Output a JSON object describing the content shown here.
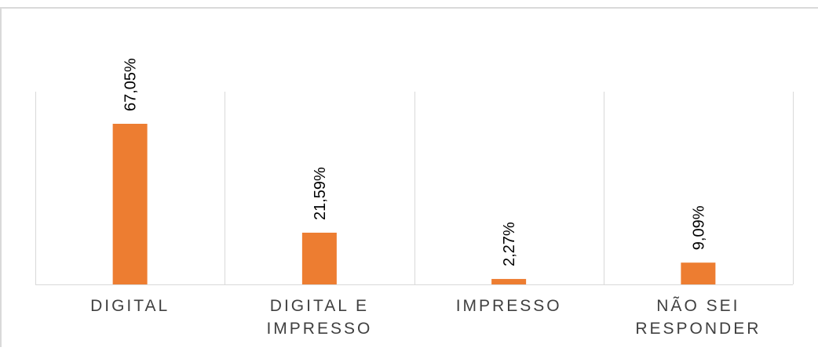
{
  "chart_data": {
    "type": "bar",
    "categories": [
      [
        "DIGITAL"
      ],
      [
        "DIGITAL E",
        "IMPRESSO"
      ],
      [
        "IMPRESSO"
      ],
      [
        "NÃO SEI",
        "RESPONDER"
      ]
    ],
    "values": [
      67.05,
      21.59,
      2.27,
      9.09
    ],
    "data_labels": [
      "67,05%",
      "21,59%",
      "2,27%",
      "9,09%"
    ],
    "ylim": [
      0,
      100
    ],
    "grid": "vertical-separators",
    "legend": "none",
    "colors": {
      "bar": "#ED7D31",
      "label": "#000000",
      "category_text": "#404040",
      "grid": "#D9D9D9",
      "frame": "#D9D9D9"
    }
  }
}
